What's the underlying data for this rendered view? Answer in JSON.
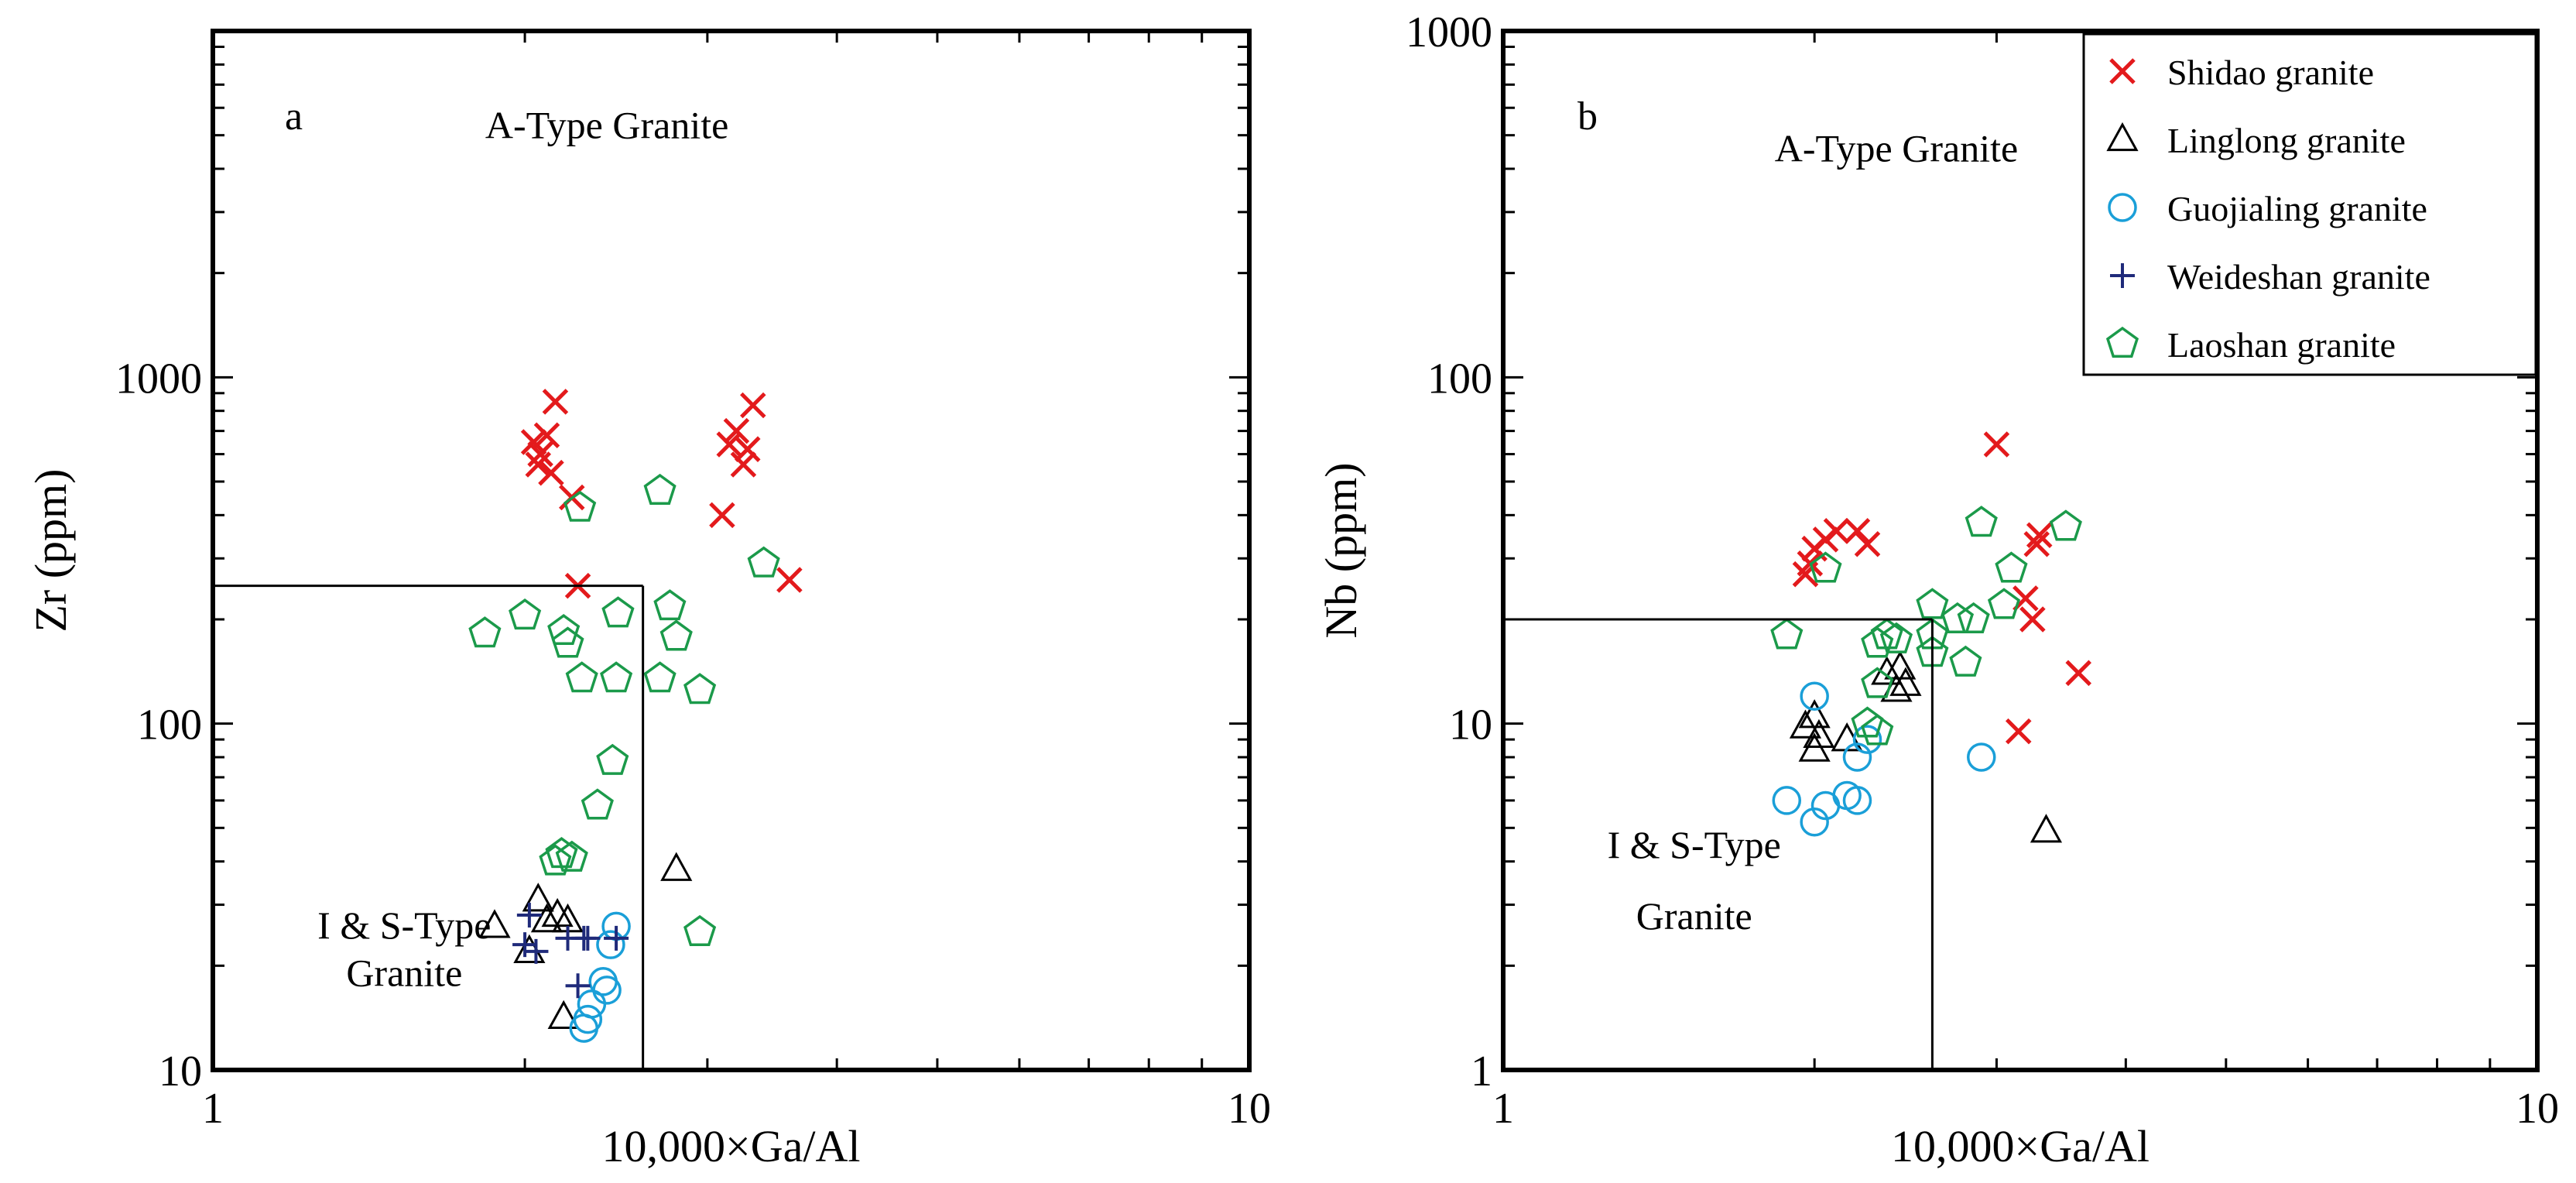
{
  "figure": {
    "xlabel": "10,000×Ga/Al"
  },
  "legend": {
    "position": "top-right of panel b",
    "entries": [
      {
        "name": "Shidao granite",
        "marker": "x-cross",
        "color": "#e31a1c"
      },
      {
        "name": "Linglong granite",
        "marker": "open-triangle",
        "color": "#000000"
      },
      {
        "name": "Guojialing granite",
        "marker": "open-circle",
        "color": "#1a9fd8"
      },
      {
        "name": "Weideshan granite",
        "marker": "plus",
        "color": "#1f2a7a"
      },
      {
        "name": "Laoshan granite",
        "marker": "open-pentagon",
        "color": "#1b9a4a"
      }
    ]
  },
  "chart_data": [
    {
      "type": "scatter",
      "panel_label": "a",
      "xlabel": "10,000×Ga/Al",
      "ylabel": "Zr (ppm)",
      "xscale": "log",
      "yscale": "log",
      "xlim": [
        1,
        10
      ],
      "ylim": [
        10,
        10000
      ],
      "xticks": [
        {
          "value": 1,
          "label": "1"
        },
        {
          "value": 10,
          "label": "10"
        }
      ],
      "yticks": [
        {
          "value": 10,
          "label": "10"
        },
        {
          "value": 100,
          "label": "100"
        },
        {
          "value": 1000,
          "label": "1000"
        }
      ],
      "boundary": {
        "x": 2.6,
        "y": 250
      },
      "region_labels": [
        {
          "text": "A-Type Granite",
          "x": 2.4,
          "y": 4900
        },
        {
          "text": "I & S-Type",
          "x": 1.53,
          "y": 24
        },
        {
          "text": "Granite",
          "x": 1.53,
          "y": 17.5
        }
      ],
      "series": [
        {
          "name": "Shidao granite",
          "points": [
            [
              2.04,
              650
            ],
            [
              2.07,
              600
            ],
            [
              2.06,
              560
            ],
            [
              2.1,
              680
            ],
            [
              2.12,
              530
            ],
            [
              2.14,
              850
            ],
            [
              2.22,
              450
            ],
            [
              2.25,
              250
            ],
            [
              3.1,
              400
            ],
            [
              3.15,
              640
            ],
            [
              3.2,
              700
            ],
            [
              3.25,
              560
            ],
            [
              3.28,
              620
            ],
            [
              3.32,
              830
            ],
            [
              3.6,
              260
            ]
          ]
        },
        {
          "name": "Linglong granite",
          "points": [
            [
              1.87,
              26
            ],
            [
              2.02,
              22
            ],
            [
              2.06,
              31
            ],
            [
              2.1,
              27
            ],
            [
              2.15,
              28
            ],
            [
              2.2,
              27
            ],
            [
              2.18,
              14.2
            ],
            [
              2.8,
              38
            ]
          ]
        },
        {
          "name": "Guojialing granite",
          "points": [
            [
              2.45,
              26
            ],
            [
              2.42,
              23
            ],
            [
              2.4,
              17
            ],
            [
              2.38,
              18
            ],
            [
              2.32,
              15.5
            ],
            [
              2.3,
              14
            ],
            [
              2.28,
              13.2
            ]
          ]
        },
        {
          "name": "Weideshan granite",
          "points": [
            [
              2.02,
              28
            ],
            [
              2.0,
              23
            ],
            [
              2.05,
              22
            ],
            [
              2.2,
              24
            ],
            [
              2.28,
              24
            ],
            [
              2.3,
              24
            ],
            [
              2.45,
              24
            ],
            [
              2.25,
              17.5
            ]
          ]
        },
        {
          "name": "Laoshan granite",
          "points": [
            [
              1.83,
              182
            ],
            [
              2.0,
              205
            ],
            [
              2.18,
              185
            ],
            [
              2.2,
              170
            ],
            [
              2.26,
              420
            ],
            [
              2.27,
              135
            ],
            [
              2.46,
              208
            ],
            [
              2.45,
              135
            ],
            [
              2.7,
              470
            ],
            [
              2.7,
              135
            ],
            [
              2.76,
              218
            ],
            [
              2.8,
              178
            ],
            [
              2.95,
              125
            ],
            [
              3.4,
              290
            ],
            [
              2.43,
              78
            ],
            [
              2.35,
              58
            ],
            [
              2.17,
              42
            ],
            [
              2.14,
              40
            ],
            [
              2.22,
              41
            ],
            [
              2.95,
              25
            ]
          ]
        }
      ]
    },
    {
      "type": "scatter",
      "panel_label": "b",
      "xlabel": "10,000×Ga/Al",
      "ylabel": "Nb (ppm)",
      "xscale": "log",
      "yscale": "log",
      "xlim": [
        1,
        10
      ],
      "ylim": [
        1,
        1000
      ],
      "xticks": [
        {
          "value": 1,
          "label": "1"
        },
        {
          "value": 10,
          "label": "10"
        }
      ],
      "yticks": [
        {
          "value": 1,
          "label": "1"
        },
        {
          "value": 10,
          "label": "10"
        },
        {
          "value": 100,
          "label": "100"
        },
        {
          "value": 1000,
          "label": "1000"
        }
      ],
      "boundary": {
        "x": 2.6,
        "y": 20
      },
      "region_labels": [
        {
          "text": "A-Type Granite",
          "x": 2.4,
          "y": 420
        },
        {
          "text": "I & S-Type",
          "x": 1.53,
          "y": 4.1
        },
        {
          "text": "Granite",
          "x": 1.53,
          "y": 2.55
        }
      ],
      "series": [
        {
          "name": "Shidao granite",
          "points": [
            [
              1.96,
              27
            ],
            [
              1.98,
              29
            ],
            [
              2.0,
              32
            ],
            [
              2.05,
              34
            ],
            [
              2.1,
              36
            ],
            [
              2.2,
              36
            ],
            [
              2.25,
              33
            ],
            [
              3.0,
              64
            ],
            [
              3.2,
              23
            ],
            [
              3.25,
              20
            ],
            [
              3.28,
              33
            ],
            [
              3.3,
              35
            ],
            [
              3.15,
              9.5
            ],
            [
              3.6,
              14
            ]
          ]
        },
        {
          "name": "Linglong granite",
          "points": [
            [
              1.96,
              9.8
            ],
            [
              2.0,
              10.5
            ],
            [
              2.02,
              9.2
            ],
            [
              2.0,
              8.4
            ],
            [
              2.15,
              9.0
            ],
            [
              2.35,
              14
            ],
            [
              2.4,
              12.5
            ],
            [
              2.42,
              14.5
            ],
            [
              2.45,
              13
            ],
            [
              3.35,
              4.9
            ]
          ]
        },
        {
          "name": "Guojialing granite",
          "points": [
            [
              1.88,
              6
            ],
            [
              2.0,
              5.2
            ],
            [
              2.05,
              5.8
            ],
            [
              2.15,
              6.2
            ],
            [
              2.2,
              6.0
            ],
            [
              2.2,
              8.0
            ],
            [
              2.25,
              9.0
            ],
            [
              2.0,
              12
            ],
            [
              2.9,
              8.0
            ]
          ]
        },
        {
          "name": "Weideshan granite",
          "points": []
        },
        {
          "name": "Laoshan granite",
          "points": [
            [
              1.88,
              18
            ],
            [
              2.05,
              28
            ],
            [
              2.3,
              17
            ],
            [
              2.35,
              18
            ],
            [
              2.4,
              17.5
            ],
            [
              2.3,
              13
            ],
            [
              2.25,
              10
            ],
            [
              2.3,
              9.5
            ],
            [
              2.6,
              22
            ],
            [
              2.6,
              18
            ],
            [
              2.75,
              20
            ],
            [
              2.8,
              15
            ],
            [
              2.9,
              38
            ],
            [
              2.85,
              20
            ],
            [
              3.05,
              22
            ],
            [
              3.1,
              28
            ],
            [
              3.5,
              37
            ],
            [
              2.6,
              16
            ]
          ]
        }
      ]
    }
  ]
}
